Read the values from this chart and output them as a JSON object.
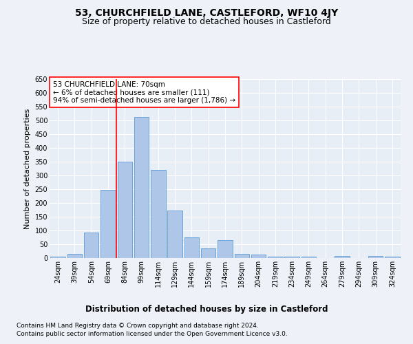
{
  "title": "53, CHURCHFIELD LANE, CASTLEFORD, WF10 4JY",
  "subtitle": "Size of property relative to detached houses in Castleford",
  "xlabel": "Distribution of detached houses by size in Castleford",
  "ylabel": "Number of detached properties",
  "categories": [
    "24sqm",
    "39sqm",
    "54sqm",
    "69sqm",
    "84sqm",
    "99sqm",
    "114sqm",
    "129sqm",
    "144sqm",
    "159sqm",
    "174sqm",
    "189sqm",
    "204sqm",
    "219sqm",
    "234sqm",
    "249sqm",
    "264sqm",
    "279sqm",
    "294sqm",
    "309sqm",
    "324sqm"
  ],
  "values": [
    6,
    14,
    92,
    248,
    349,
    512,
    321,
    173,
    75,
    35,
    65,
    15,
    12,
    6,
    6,
    5,
    0,
    7,
    0,
    7,
    5
  ],
  "bar_color": "#aec6e8",
  "bar_edge_color": "#5b9bd5",
  "red_line_bin": 3.5,
  "annotation_text": "53 CHURCHFIELD LANE: 70sqm\n← 6% of detached houses are smaller (111)\n94% of semi-detached houses are larger (1,786) →",
  "ylim": [
    0,
    650
  ],
  "yticks": [
    0,
    50,
    100,
    150,
    200,
    250,
    300,
    350,
    400,
    450,
    500,
    550,
    600,
    650
  ],
  "footnote1": "Contains HM Land Registry data © Crown copyright and database right 2024.",
  "footnote2": "Contains public sector information licensed under the Open Government Licence v3.0.",
  "background_color": "#eef2f8",
  "plot_bg_color": "#e8eef6",
  "grid_color": "#ffffff",
  "title_fontsize": 10,
  "subtitle_fontsize": 9,
  "xlabel_fontsize": 8.5,
  "ylabel_fontsize": 8,
  "tick_fontsize": 7,
  "annotation_fontsize": 7.5,
  "footnote_fontsize": 6.5
}
